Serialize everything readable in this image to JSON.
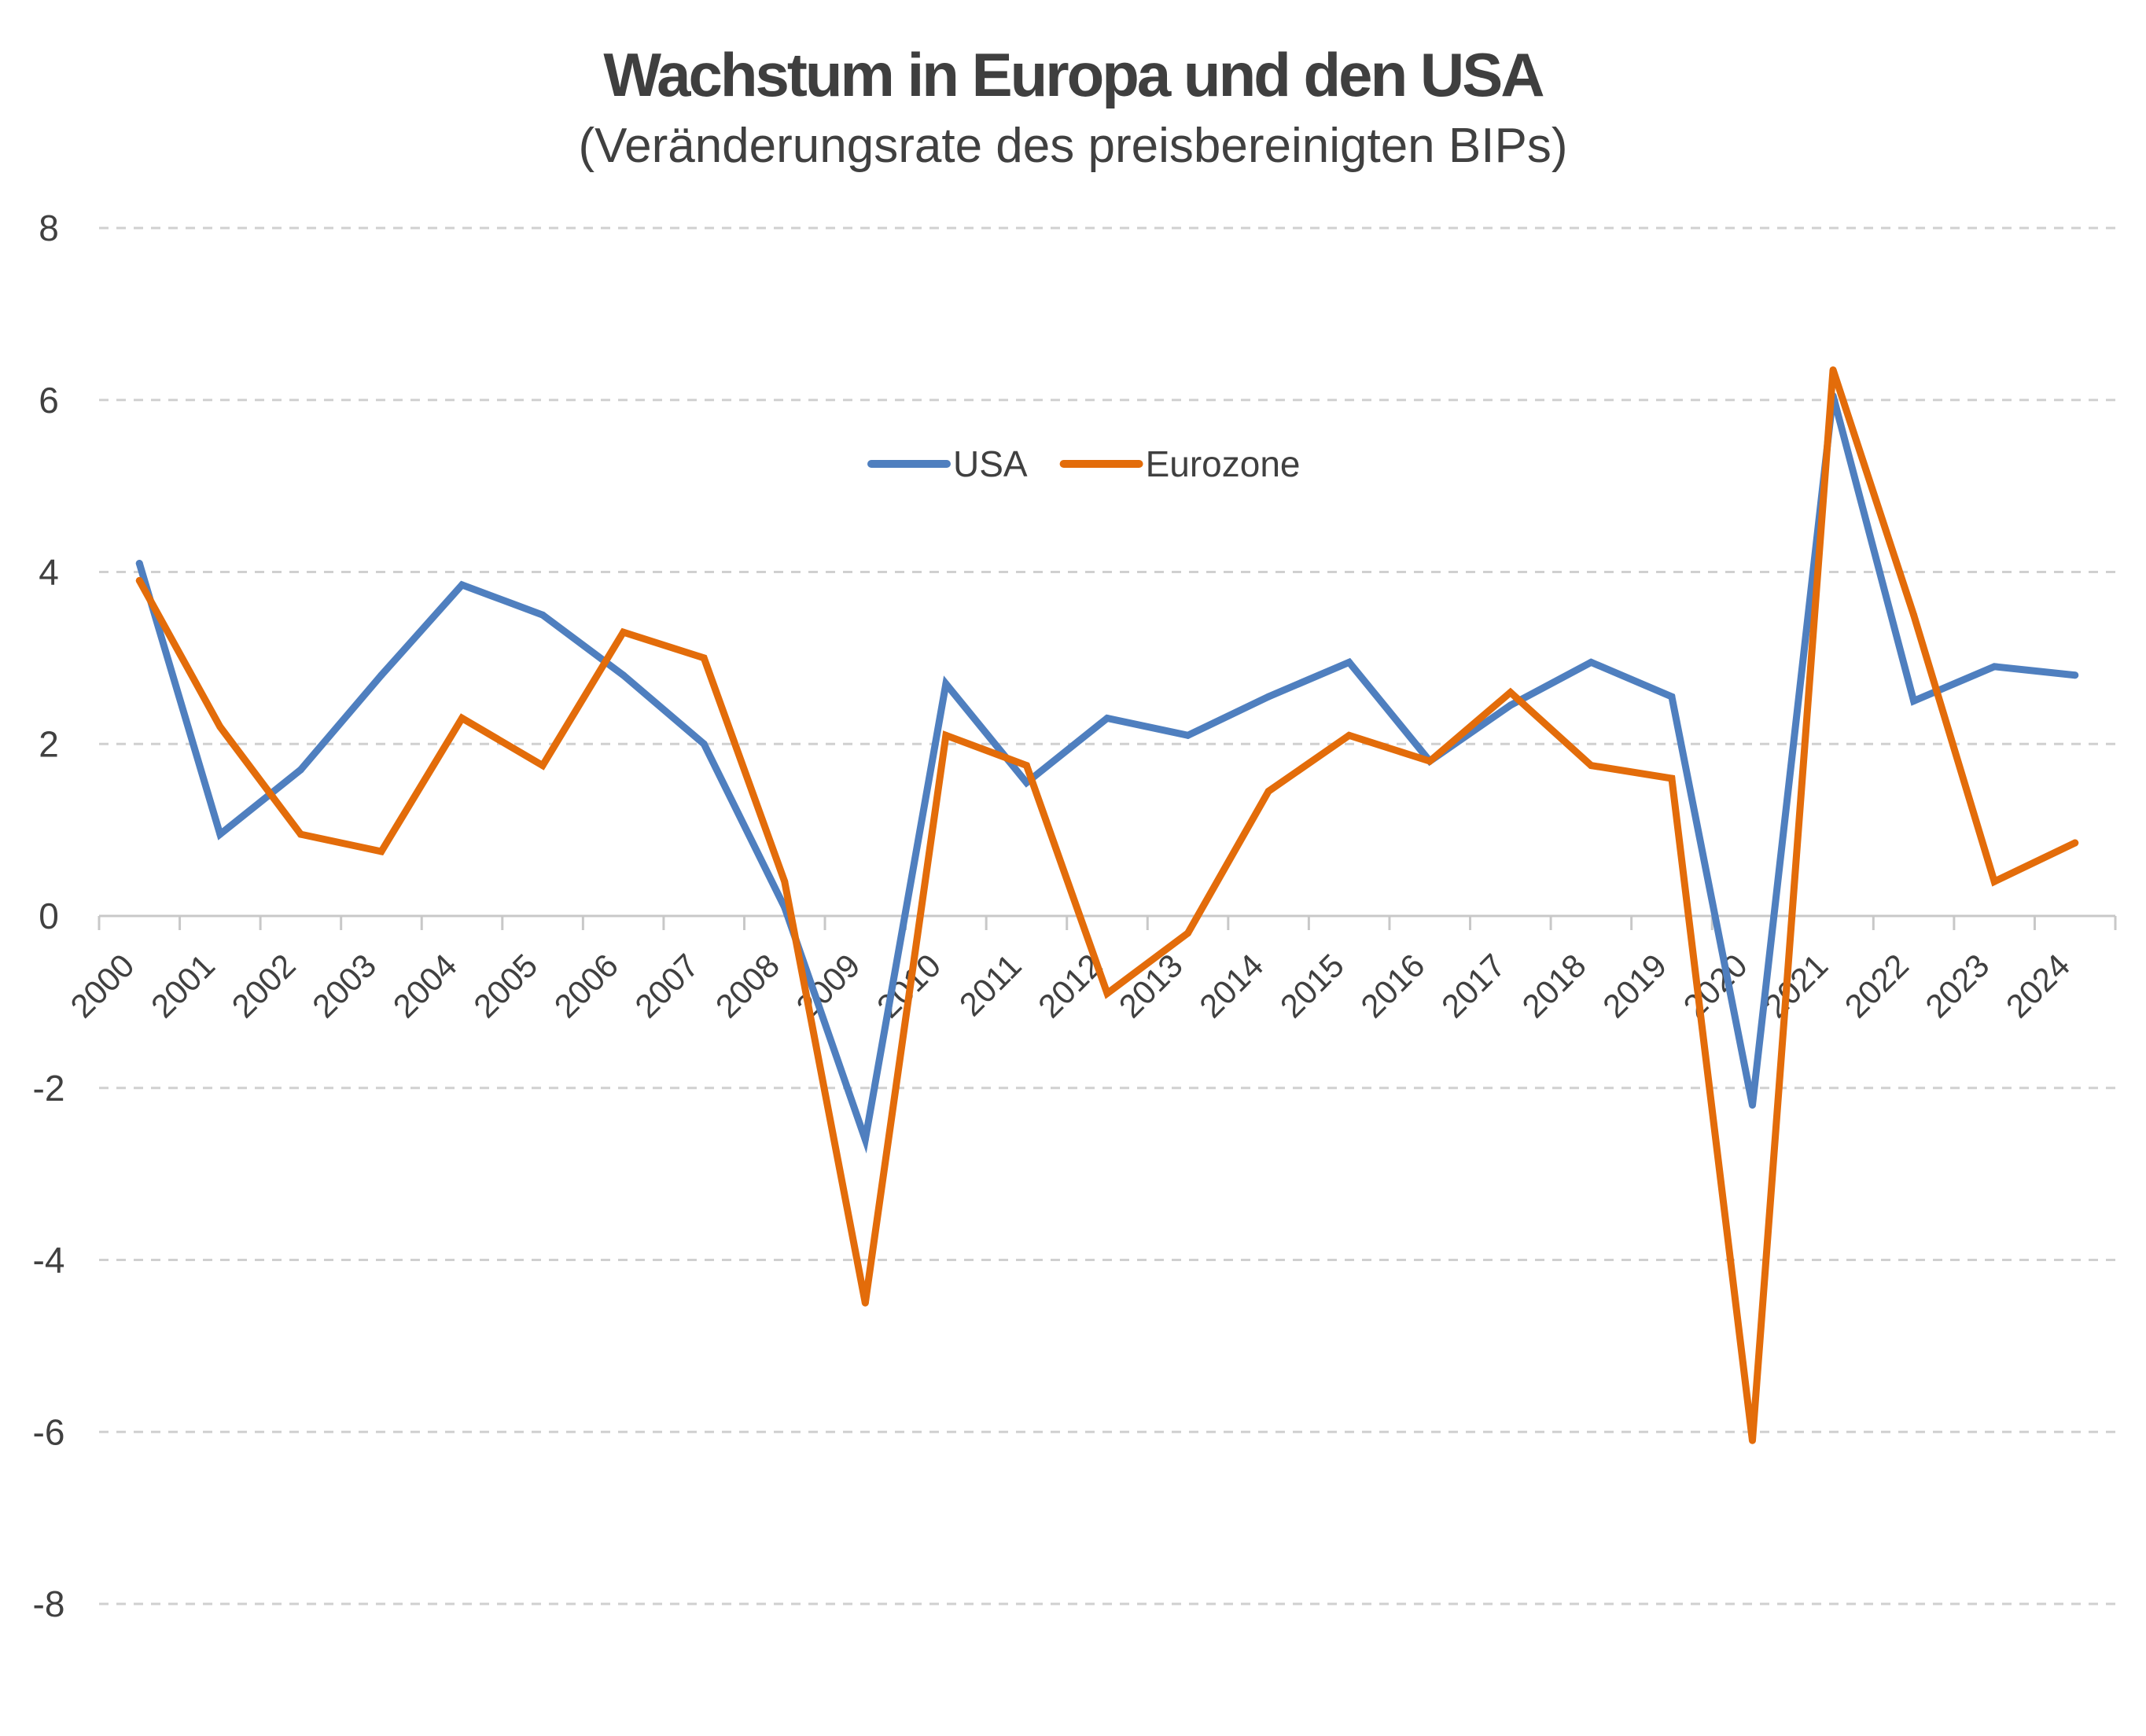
{
  "chart_data": {
    "type": "line",
    "title": "Wachstum in Europa und den USA",
    "subtitle": "(Veränderungsrate des preisbereinigten BIPs)",
    "xlabel": "",
    "ylabel": "",
    "ylim": [
      -8,
      8
    ],
    "yticks": [
      "8",
      "6",
      "4",
      "2",
      "0",
      "-2",
      "-4",
      "-6",
      "-8"
    ],
    "grid": true,
    "legend_position": "top-center",
    "categories": [
      "2000",
      "2001",
      "2002",
      "2003",
      "2004",
      "2005",
      "2006",
      "2007",
      "2008",
      "2009",
      "2010",
      "2011",
      "2012",
      "2013",
      "2014",
      "2015",
      "2016",
      "2017",
      "2018",
      "2019",
      "2020",
      "2021",
      "2022",
      "2023",
      "2024"
    ],
    "series": [
      {
        "name": "USA",
        "color": "#4f7fbf",
        "values": [
          4.1,
          0.95,
          1.7,
          2.8,
          3.85,
          3.5,
          2.8,
          2.0,
          0.1,
          -2.6,
          2.7,
          1.55,
          2.3,
          2.1,
          2.55,
          2.95,
          1.8,
          2.45,
          2.95,
          2.55,
          -2.2,
          6.05,
          2.5,
          2.9,
          2.8
        ]
      },
      {
        "name": "Eurozone",
        "color": "#e36c0a",
        "values": [
          3.9,
          2.2,
          0.95,
          0.75,
          2.3,
          1.75,
          3.3,
          3.0,
          0.4,
          -4.5,
          2.1,
          1.75,
          -0.9,
          -0.2,
          1.45,
          2.1,
          1.8,
          2.6,
          1.75,
          1.6,
          -6.1,
          6.35,
          3.5,
          0.4,
          0.85
        ]
      }
    ]
  }
}
